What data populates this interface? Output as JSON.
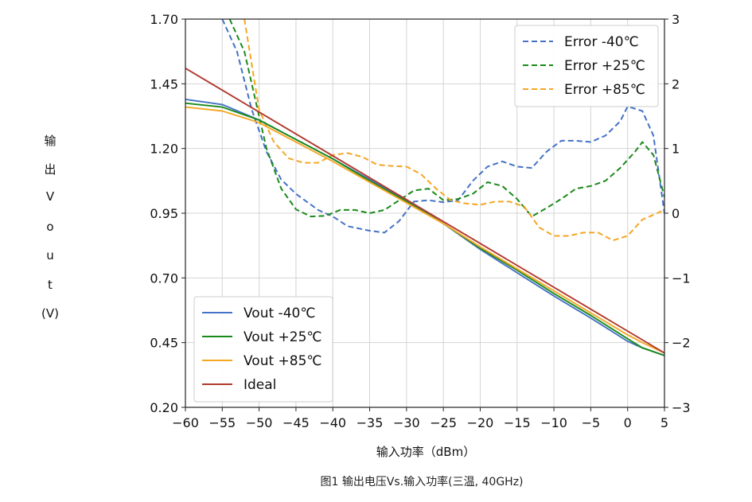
{
  "caption": "图1 输出电压Vs.输入功率(三温, 40GHz)",
  "chart_data": {
    "type": "line",
    "xlabel": "输入功率（dBm）",
    "ylabel_chars": [
      "输",
      "出",
      "V",
      "o",
      "u",
      "t",
      "(V)"
    ],
    "xlim": [
      -60,
      5
    ],
    "ylim": [
      0.2,
      1.7
    ],
    "y2lim": [
      -3,
      3
    ],
    "grid": true,
    "x_ticks": [
      -60,
      -55,
      -50,
      -45,
      -40,
      -35,
      -30,
      -25,
      -20,
      -15,
      -10,
      -5,
      0,
      5
    ],
    "x_tick_labels": [
      "−60",
      "−55",
      "−50",
      "−45",
      "−40",
      "−35",
      "−30",
      "−25",
      "−20",
      "−15",
      "−10",
      "−5",
      "0",
      "5"
    ],
    "y_ticks": [
      0.2,
      0.45,
      0.7,
      0.95,
      1.2,
      1.45,
      1.7
    ],
    "y_tick_labels": [
      "0.20",
      "0.45",
      "0.70",
      "0.95",
      "1.20",
      "1.45",
      "1.70"
    ],
    "y2_ticks": [
      -3,
      -2,
      -1,
      0,
      1,
      2,
      3
    ],
    "y2_tick_labels": [
      "−3",
      "−2",
      "−1",
      "0",
      "1",
      "2",
      "3"
    ],
    "legend_left": {
      "placement": "bottom-left",
      "entries": [
        "Vout  -40℃",
        "Vout +25℃",
        "Vout +85℃",
        "Ideal"
      ]
    },
    "legend_right": {
      "placement": "top-right",
      "entries": [
        "Error  -40℃",
        "Error +25℃",
        "Error +85℃"
      ]
    },
    "series": [
      {
        "name": "Vout  -40℃",
        "axis": "left",
        "style": "solid",
        "color": "#4472C4",
        "x": [
          -60,
          -55,
          -50,
          -45,
          -40,
          -35,
          -30,
          -25,
          -20,
          -15,
          -10,
          -5,
          0,
          2,
          5
        ],
        "y": [
          1.39,
          1.37,
          1.31,
          1.235,
          1.16,
          1.08,
          1.0,
          0.91,
          0.81,
          0.72,
          0.63,
          0.545,
          0.455,
          0.43,
          0.4
        ]
      },
      {
        "name": "Vout +25℃",
        "axis": "left",
        "style": "solid",
        "color": "#1A8A1A",
        "x": [
          -60,
          -55,
          -50,
          -45,
          -40,
          -35,
          -30,
          -25,
          -20,
          -15,
          -10,
          -5,
          0,
          2,
          5
        ],
        "y": [
          1.375,
          1.36,
          1.31,
          1.235,
          1.16,
          1.075,
          0.995,
          0.91,
          0.815,
          0.73,
          0.64,
          0.555,
          0.465,
          0.43,
          0.4
        ]
      },
      {
        "name": "Vout +85℃",
        "axis": "left",
        "style": "solid",
        "color": "#F5A623",
        "x": [
          -60,
          -55,
          -50,
          -45,
          -40,
          -35,
          -30,
          -25,
          -20,
          -15,
          -10,
          -5,
          0,
          2,
          5
        ],
        "y": [
          1.36,
          1.345,
          1.3,
          1.225,
          1.15,
          1.07,
          0.99,
          0.91,
          0.82,
          0.735,
          0.65,
          0.565,
          0.48,
          0.45,
          0.41
        ]
      },
      {
        "name": "Ideal",
        "axis": "left",
        "style": "solid",
        "color": "#B03A2E",
        "x": [
          -60,
          5
        ],
        "y": [
          1.51,
          0.41
        ]
      },
      {
        "name": "Error  -40℃",
        "axis": "right",
        "style": "dashed",
        "color": "#4472C4",
        "x": [
          -55,
          -53,
          -51,
          -49,
          -47,
          -45,
          -42,
          -40,
          -38,
          -35,
          -33,
          -31,
          -29,
          -27,
          -25,
          -23,
          -21,
          -19,
          -17,
          -15,
          -13,
          -11,
          -9,
          -7,
          -5,
          -3,
          -1,
          0,
          2,
          3.5,
          5
        ],
        "y": [
          3.0,
          2.5,
          1.6,
          0.95,
          0.52,
          0.3,
          0.05,
          -0.05,
          -0.2,
          -0.27,
          -0.3,
          -0.12,
          0.18,
          0.2,
          0.17,
          0.2,
          0.5,
          0.72,
          0.8,
          0.72,
          0.7,
          0.95,
          1.12,
          1.12,
          1.1,
          1.2,
          1.42,
          1.65,
          1.58,
          1.2,
          0.0
        ]
      },
      {
        "name": "Error +25℃",
        "axis": "right",
        "style": "dashed",
        "color": "#1A8A1A",
        "x": [
          -54,
          -52,
          -50,
          -49,
          -47,
          -45,
          -43,
          -41,
          -39,
          -37,
          -35,
          -33,
          -31,
          -29,
          -27,
          -25,
          -23,
          -21,
          -19,
          -17,
          -15,
          -13,
          -11,
          -9,
          -7,
          -5,
          -3,
          -1,
          1,
          2,
          3.5,
          5
        ],
        "y": [
          3.0,
          2.5,
          1.5,
          1.0,
          0.38,
          0.06,
          -0.05,
          -0.04,
          0.05,
          0.05,
          0.0,
          0.05,
          0.2,
          0.35,
          0.38,
          0.2,
          0.22,
          0.3,
          0.48,
          0.42,
          0.22,
          -0.05,
          0.08,
          0.22,
          0.38,
          0.42,
          0.5,
          0.7,
          0.95,
          1.1,
          0.9,
          0.25
        ]
      },
      {
        "name": "Error +85℃",
        "axis": "right",
        "style": "dashed",
        "color": "#F5A623",
        "x": [
          -52,
          -50,
          -48,
          -46,
          -44,
          -42,
          -40,
          -38,
          -36,
          -34,
          -32,
          -30,
          -28,
          -26,
          -24,
          -22,
          -20,
          -18,
          -16,
          -14,
          -12,
          -10,
          -8,
          -6,
          -4,
          -2,
          0,
          2,
          5
        ],
        "y": [
          3.0,
          1.6,
          1.1,
          0.85,
          0.78,
          0.78,
          0.9,
          0.93,
          0.87,
          0.75,
          0.73,
          0.72,
          0.6,
          0.38,
          0.2,
          0.15,
          0.13,
          0.18,
          0.18,
          0.1,
          -0.22,
          -0.35,
          -0.35,
          -0.3,
          -0.3,
          -0.42,
          -0.35,
          -0.1,
          0.05
        ]
      }
    ]
  }
}
